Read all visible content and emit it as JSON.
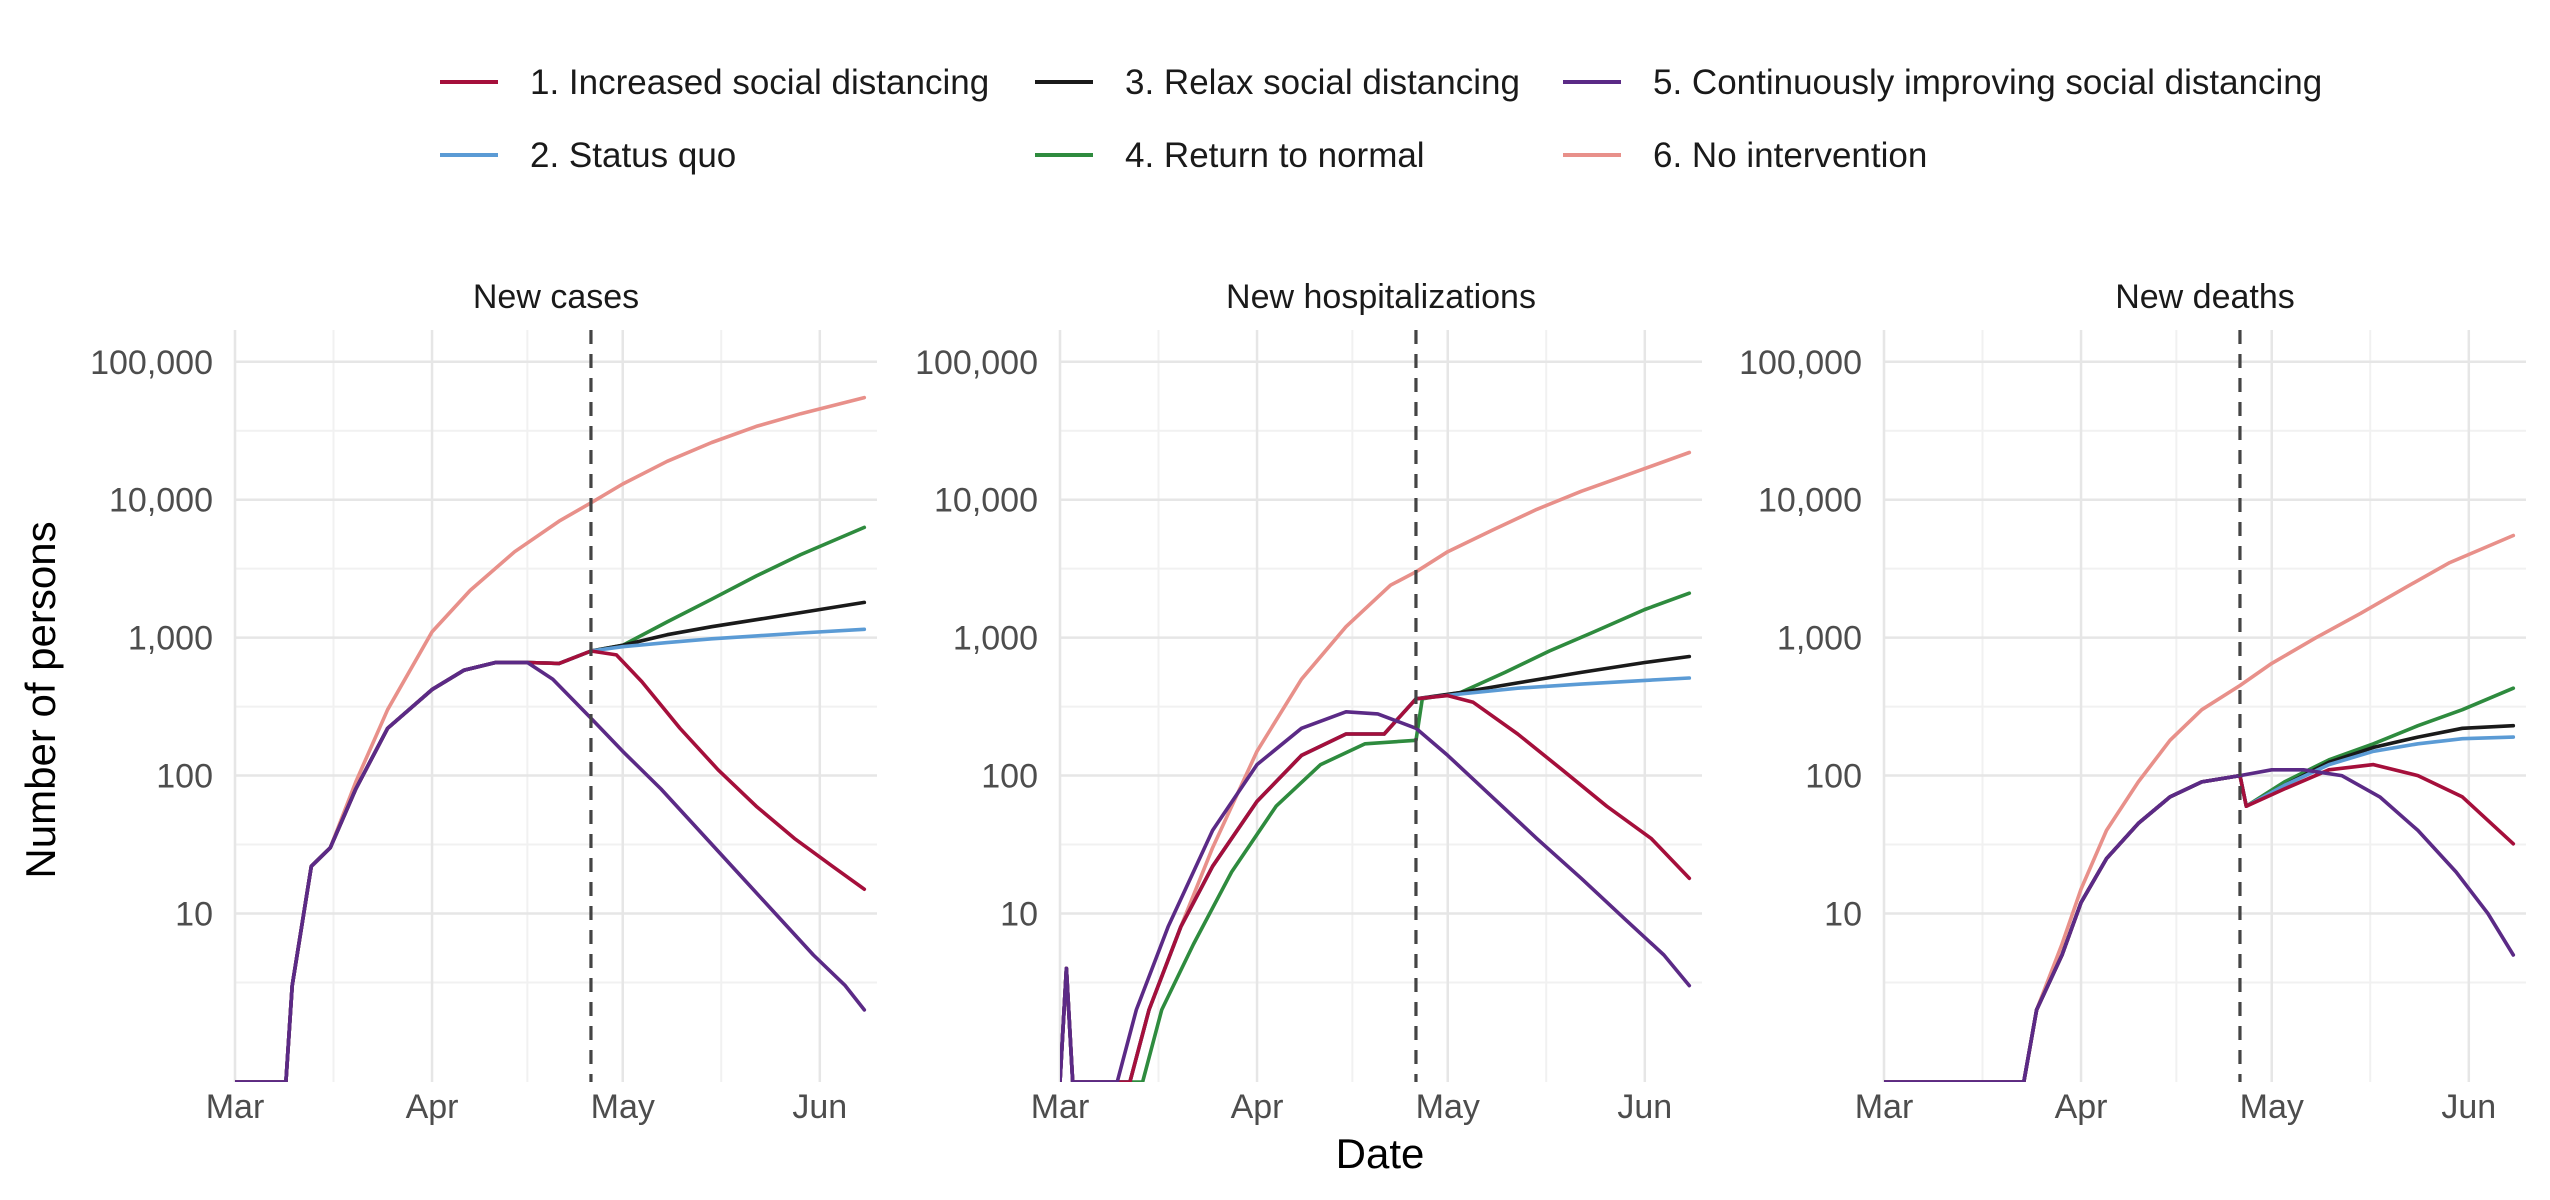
{
  "legend": {
    "placement": "top",
    "items": [
      {
        "label": "1. Increased social distancing",
        "color": "#a50f3b"
      },
      {
        "label": "2. Status quo",
        "color": "#5b9bd5"
      },
      {
        "label": "3. Relax social distancing",
        "color": "#1a1a1a"
      },
      {
        "label": "4. Return to normal",
        "color": "#2e8b3e"
      },
      {
        "label": "5. Continuously improving social distancing",
        "color": "#5b2a86"
      },
      {
        "label": "6. No intervention",
        "color": "#e8908a"
      }
    ]
  },
  "axes": {
    "xlabel": "Date",
    "ylabel": "Number of persons",
    "y_scale": "log10",
    "y_ticks": [
      10,
      100,
      1000,
      10000,
      100000
    ],
    "y_tick_labels": [
      "10",
      "100",
      "1,000",
      "10,000",
      "100,000"
    ],
    "x_ticks": [
      "2020-03-01",
      "2020-04-01",
      "2020-05-01",
      "2020-06-01"
    ],
    "x_tick_labels": [
      "Mar",
      "Apr",
      "May",
      "Jun"
    ],
    "intervention_date": "2020-04-26",
    "grid": true
  },
  "chart_data": [
    {
      "type": "line",
      "title": "New cases",
      "xlim": [
        "2020-03-01",
        "2020-06-10"
      ],
      "ylim": [
        0.6,
        170000
      ],
      "series": [
        {
          "name": "1. Increased social distancing",
          "x": [
            "2020-03-01",
            "2020-03-09",
            "2020-03-10",
            "2020-03-13",
            "2020-03-16",
            "2020-03-20",
            "2020-03-25",
            "2020-04-01",
            "2020-04-06",
            "2020-04-11",
            "2020-04-16",
            "2020-04-21",
            "2020-04-26",
            "2020-04-30",
            "2020-05-04",
            "2020-05-10",
            "2020-05-16",
            "2020-05-22",
            "2020-05-28",
            "2020-06-03",
            "2020-06-08"
          ],
          "y": [
            0.6,
            0.6,
            3,
            22,
            30,
            80,
            220,
            420,
            580,
            660,
            660,
            650,
            800,
            750,
            480,
            220,
            110,
            60,
            35,
            22,
            15
          ]
        },
        {
          "name": "2. Status quo",
          "x": [
            "2020-03-01",
            "2020-03-09",
            "2020-03-10",
            "2020-03-13",
            "2020-03-16",
            "2020-03-20",
            "2020-03-25",
            "2020-04-01",
            "2020-04-06",
            "2020-04-11",
            "2020-04-16",
            "2020-04-21",
            "2020-04-26",
            "2020-05-01",
            "2020-05-08",
            "2020-05-15",
            "2020-05-22",
            "2020-05-29",
            "2020-06-08"
          ],
          "y": [
            0.6,
            0.6,
            3,
            22,
            30,
            80,
            220,
            420,
            580,
            660,
            660,
            650,
            800,
            860,
            920,
            980,
            1030,
            1080,
            1150
          ]
        },
        {
          "name": "3. Relax social distancing",
          "x": [
            "2020-03-01",
            "2020-03-09",
            "2020-03-10",
            "2020-03-13",
            "2020-03-16",
            "2020-03-20",
            "2020-03-25",
            "2020-04-01",
            "2020-04-06",
            "2020-04-11",
            "2020-04-16",
            "2020-04-21",
            "2020-04-26",
            "2020-05-01",
            "2020-05-08",
            "2020-05-15",
            "2020-05-22",
            "2020-05-29",
            "2020-06-08"
          ],
          "y": [
            0.6,
            0.6,
            3,
            22,
            30,
            80,
            220,
            420,
            580,
            660,
            660,
            650,
            800,
            880,
            1050,
            1200,
            1350,
            1520,
            1800
          ]
        },
        {
          "name": "4. Return to normal",
          "x": [
            "2020-03-01",
            "2020-03-09",
            "2020-03-10",
            "2020-03-13",
            "2020-03-16",
            "2020-03-20",
            "2020-03-25",
            "2020-04-01",
            "2020-04-06",
            "2020-04-11",
            "2020-04-16",
            "2020-04-21",
            "2020-04-26",
            "2020-05-01",
            "2020-05-08",
            "2020-05-15",
            "2020-05-22",
            "2020-05-29",
            "2020-06-08"
          ],
          "y": [
            0.6,
            0.6,
            3,
            22,
            30,
            80,
            220,
            420,
            580,
            660,
            660,
            650,
            800,
            880,
            1300,
            1900,
            2800,
            4000,
            6300
          ]
        },
        {
          "name": "5. Continuously improving social distancing",
          "x": [
            "2020-03-01",
            "2020-03-09",
            "2020-03-10",
            "2020-03-13",
            "2020-03-16",
            "2020-03-20",
            "2020-03-25",
            "2020-04-01",
            "2020-04-06",
            "2020-04-11",
            "2020-04-16",
            "2020-04-20",
            "2020-04-26",
            "2020-05-01",
            "2020-05-07",
            "2020-05-13",
            "2020-05-19",
            "2020-05-25",
            "2020-05-31",
            "2020-06-05",
            "2020-06-08"
          ],
          "y": [
            0.6,
            0.6,
            3,
            22,
            30,
            80,
            220,
            420,
            580,
            660,
            660,
            500,
            260,
            150,
            80,
            40,
            20,
            10,
            5,
            3,
            2
          ]
        },
        {
          "name": "6. No intervention",
          "x": [
            "2020-03-01",
            "2020-03-09",
            "2020-03-10",
            "2020-03-13",
            "2020-03-16",
            "2020-03-20",
            "2020-03-25",
            "2020-04-01",
            "2020-04-07",
            "2020-04-14",
            "2020-04-21",
            "2020-04-26",
            "2020-05-01",
            "2020-05-08",
            "2020-05-15",
            "2020-05-22",
            "2020-05-29",
            "2020-06-08"
          ],
          "y": [
            0.6,
            0.6,
            3,
            22,
            30,
            90,
            300,
            1100,
            2200,
            4200,
            7000,
            9500,
            13000,
            19000,
            26000,
            34000,
            42000,
            55000
          ]
        }
      ]
    },
    {
      "type": "line",
      "title": "New hospitalizations",
      "xlim": [
        "2020-03-01",
        "2020-06-10"
      ],
      "ylim": [
        0.6,
        170000
      ],
      "series": [
        {
          "name": "1. Increased social distancing",
          "x": [
            "2020-03-01",
            "2020-03-02",
            "2020-03-03",
            "2020-03-04",
            "2020-03-12",
            "2020-03-15",
            "2020-03-20",
            "2020-03-25",
            "2020-04-01",
            "2020-04-08",
            "2020-04-15",
            "2020-04-21",
            "2020-04-26",
            "2020-05-01",
            "2020-05-05",
            "2020-05-12",
            "2020-05-19",
            "2020-05-26",
            "2020-06-02",
            "2020-06-08"
          ],
          "y": [
            0.6,
            4,
            0.6,
            0.6,
            0.6,
            2,
            8,
            22,
            65,
            140,
            200,
            200,
            360,
            380,
            340,
            200,
            110,
            60,
            35,
            18
          ]
        },
        {
          "name": "2. Status quo",
          "x": [
            "2020-03-01",
            "2020-03-02",
            "2020-03-03",
            "2020-03-04",
            "2020-03-12",
            "2020-03-15",
            "2020-03-20",
            "2020-03-25",
            "2020-04-01",
            "2020-04-08",
            "2020-04-15",
            "2020-04-21",
            "2020-04-26",
            "2020-05-03",
            "2020-05-12",
            "2020-05-22",
            "2020-06-01",
            "2020-06-08"
          ],
          "y": [
            0.6,
            4,
            0.6,
            0.6,
            0.6,
            2,
            8,
            22,
            65,
            140,
            200,
            200,
            360,
            390,
            430,
            460,
            490,
            510
          ]
        },
        {
          "name": "3. Relax social distancing",
          "x": [
            "2020-03-01",
            "2020-03-02",
            "2020-03-03",
            "2020-03-04",
            "2020-03-12",
            "2020-03-15",
            "2020-03-20",
            "2020-03-25",
            "2020-04-01",
            "2020-04-08",
            "2020-04-15",
            "2020-04-21",
            "2020-04-26",
            "2020-05-03",
            "2020-05-12",
            "2020-05-22",
            "2020-06-01",
            "2020-06-08"
          ],
          "y": [
            0.6,
            4,
            0.6,
            0.6,
            0.6,
            2,
            8,
            22,
            65,
            140,
            200,
            200,
            360,
            400,
            470,
            560,
            660,
            730
          ]
        },
        {
          "name": "4. Return to normal",
          "x": [
            "2020-03-01",
            "2020-03-02",
            "2020-03-03",
            "2020-03-04",
            "2020-03-14",
            "2020-03-17",
            "2020-03-22",
            "2020-03-28",
            "2020-04-04",
            "2020-04-11",
            "2020-04-18",
            "2020-04-26",
            "2020-04-27",
            "2020-05-03",
            "2020-05-10",
            "2020-05-17",
            "2020-05-24",
            "2020-06-01",
            "2020-06-08"
          ],
          "y": [
            0.6,
            4,
            0.6,
            0.6,
            0.6,
            2,
            6,
            20,
            60,
            120,
            170,
            180,
            360,
            400,
            560,
            800,
            1100,
            1600,
            2100
          ]
        },
        {
          "name": "5. Continuously improving social distancing",
          "x": [
            "2020-03-01",
            "2020-03-02",
            "2020-03-03",
            "2020-03-04",
            "2020-03-10",
            "2020-03-13",
            "2020-03-18",
            "2020-03-25",
            "2020-04-01",
            "2020-04-08",
            "2020-04-15",
            "2020-04-20",
            "2020-04-26",
            "2020-05-01",
            "2020-05-08",
            "2020-05-15",
            "2020-05-22",
            "2020-05-29",
            "2020-06-04",
            "2020-06-08"
          ],
          "y": [
            0.6,
            4,
            0.6,
            0.6,
            0.6,
            2,
            8,
            40,
            120,
            220,
            290,
            280,
            220,
            140,
            70,
            35,
            18,
            9,
            5,
            3
          ]
        },
        {
          "name": "6. No intervention",
          "x": [
            "2020-03-01",
            "2020-03-02",
            "2020-03-03",
            "2020-03-04",
            "2020-03-12",
            "2020-03-15",
            "2020-03-20",
            "2020-03-25",
            "2020-04-01",
            "2020-04-08",
            "2020-04-15",
            "2020-04-22",
            "2020-04-26",
            "2020-05-01",
            "2020-05-08",
            "2020-05-15",
            "2020-05-22",
            "2020-05-29",
            "2020-06-08"
          ],
          "y": [
            0.6,
            4,
            0.6,
            0.6,
            0.6,
            2,
            8,
            30,
            150,
            500,
            1200,
            2400,
            3000,
            4200,
            6000,
            8500,
            11500,
            15000,
            22000
          ]
        }
      ]
    },
    {
      "type": "line",
      "title": "New deaths",
      "xlim": [
        "2020-03-01",
        "2020-06-10"
      ],
      "ylim": [
        0.6,
        170000
      ],
      "series": [
        {
          "name": "1. Increased social distancing",
          "x": [
            "2020-03-01",
            "2020-03-23",
            "2020-03-25",
            "2020-03-29",
            "2020-04-01",
            "2020-04-05",
            "2020-04-10",
            "2020-04-15",
            "2020-04-20",
            "2020-04-26",
            "2020-04-27",
            "2020-05-03",
            "2020-05-10",
            "2020-05-17",
            "2020-05-24",
            "2020-05-31",
            "2020-06-08"
          ],
          "y": [
            0.6,
            0.6,
            2,
            5,
            12,
            25,
            45,
            70,
            90,
            100,
            60,
            80,
            110,
            120,
            100,
            70,
            32
          ]
        },
        {
          "name": "2. Status quo",
          "x": [
            "2020-03-01",
            "2020-03-23",
            "2020-03-25",
            "2020-03-29",
            "2020-04-01",
            "2020-04-05",
            "2020-04-10",
            "2020-04-15",
            "2020-04-20",
            "2020-04-26",
            "2020-04-27",
            "2020-05-03",
            "2020-05-10",
            "2020-05-17",
            "2020-05-24",
            "2020-05-31",
            "2020-06-08"
          ],
          "y": [
            0.6,
            0.6,
            2,
            5,
            12,
            25,
            45,
            70,
            90,
            100,
            60,
            85,
            120,
            150,
            170,
            185,
            190
          ]
        },
        {
          "name": "3. Relax social distancing",
          "x": [
            "2020-03-01",
            "2020-03-23",
            "2020-03-25",
            "2020-03-29",
            "2020-04-01",
            "2020-04-05",
            "2020-04-10",
            "2020-04-15",
            "2020-04-20",
            "2020-04-26",
            "2020-04-27",
            "2020-05-03",
            "2020-05-10",
            "2020-05-17",
            "2020-05-24",
            "2020-05-31",
            "2020-06-08"
          ],
          "y": [
            0.6,
            0.6,
            2,
            5,
            12,
            25,
            45,
            70,
            90,
            100,
            60,
            85,
            125,
            160,
            190,
            220,
            230
          ]
        },
        {
          "name": "4. Return to normal",
          "x": [
            "2020-03-01",
            "2020-03-23",
            "2020-03-25",
            "2020-03-29",
            "2020-04-01",
            "2020-04-05",
            "2020-04-10",
            "2020-04-15",
            "2020-04-20",
            "2020-04-26",
            "2020-04-27",
            "2020-05-03",
            "2020-05-10",
            "2020-05-17",
            "2020-05-24",
            "2020-05-31",
            "2020-06-08"
          ],
          "y": [
            0.6,
            0.6,
            2,
            5,
            12,
            25,
            45,
            70,
            90,
            100,
            60,
            90,
            130,
            170,
            230,
            300,
            430
          ]
        },
        {
          "name": "5. Continuously improving social distancing",
          "x": [
            "2020-03-01",
            "2020-03-23",
            "2020-03-25",
            "2020-03-29",
            "2020-04-01",
            "2020-04-05",
            "2020-04-10",
            "2020-04-15",
            "2020-04-20",
            "2020-04-26",
            "2020-05-01",
            "2020-05-06",
            "2020-05-12",
            "2020-05-18",
            "2020-05-24",
            "2020-05-30",
            "2020-06-04",
            "2020-06-08"
          ],
          "y": [
            0.6,
            0.6,
            2,
            5,
            12,
            25,
            45,
            70,
            90,
            100,
            110,
            110,
            100,
            70,
            40,
            20,
            10,
            5
          ]
        },
        {
          "name": "6. No intervention",
          "x": [
            "2020-03-01",
            "2020-03-23",
            "2020-03-25",
            "2020-03-29",
            "2020-04-01",
            "2020-04-05",
            "2020-04-10",
            "2020-04-15",
            "2020-04-20",
            "2020-04-26",
            "2020-05-01",
            "2020-05-08",
            "2020-05-15",
            "2020-05-22",
            "2020-05-29",
            "2020-06-08"
          ],
          "y": [
            0.6,
            0.6,
            2,
            6,
            15,
            40,
            90,
            180,
            300,
            450,
            650,
            1000,
            1500,
            2300,
            3500,
            5500
          ]
        }
      ]
    }
  ]
}
